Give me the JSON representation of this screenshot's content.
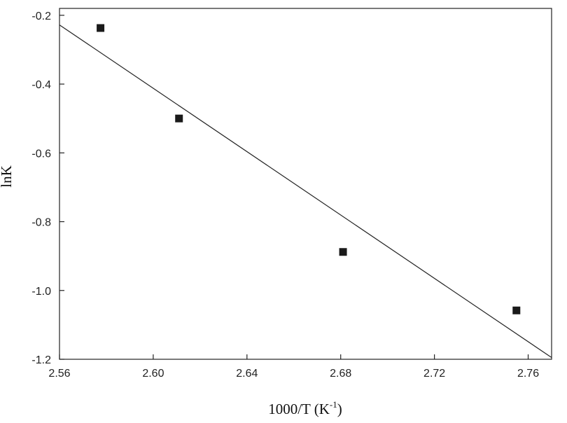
{
  "chart_data": {
    "type": "scatter",
    "xlabel": "1000/T (K",
    "xlabel_sup": "-1",
    "xlabel_close": ")",
    "ylabel": "lnK",
    "xlim": [
      2.56,
      2.77
    ],
    "ylim": [
      -1.2,
      -0.18
    ],
    "x_ticks": [
      2.56,
      2.6,
      2.64,
      2.68,
      2.72,
      2.76
    ],
    "x_tick_labels": [
      "2.56",
      "2.60",
      "2.64",
      "2.68",
      "2.72",
      "2.76"
    ],
    "y_ticks": [
      -0.2,
      -0.4,
      -0.6,
      -0.8,
      -1.0,
      -1.2
    ],
    "y_tick_labels": [
      "-0.2",
      "-0.4",
      "-0.6",
      "-0.8",
      "-1.0",
      "-1.2"
    ],
    "grid": false,
    "legend": "none",
    "series": [
      {
        "type": "scatter",
        "marker": "square",
        "x": [
          2.5775,
          2.611,
          2.681,
          2.755
        ],
        "y": [
          -0.237,
          -0.5,
          -0.888,
          -1.058
        ]
      },
      {
        "type": "line",
        "x": [
          2.56,
          2.77
        ],
        "y": [
          -0.228,
          -1.195
        ]
      }
    ]
  }
}
